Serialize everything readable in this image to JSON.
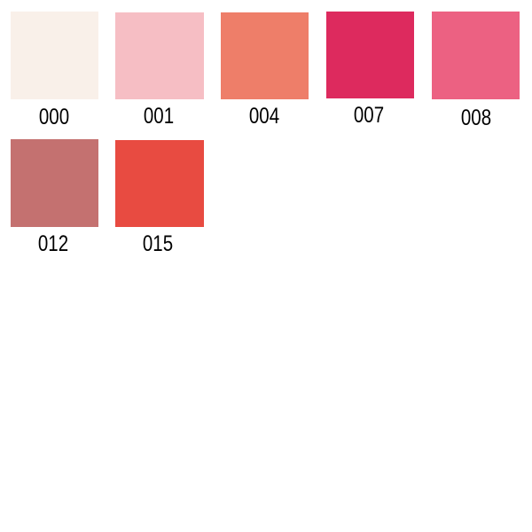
{
  "swatches": [
    {
      "code": "000",
      "color": "#F9F0E9"
    },
    {
      "code": "001",
      "color": "#F6BEC4"
    },
    {
      "code": "004",
      "color": "#EE7E69"
    },
    {
      "code": "007",
      "color": "#DD2A5E"
    },
    {
      "code": "008",
      "color": "#EC6182"
    },
    {
      "code": "012",
      "color": "#C47170"
    },
    {
      "code": "015",
      "color": "#E84B41"
    }
  ]
}
